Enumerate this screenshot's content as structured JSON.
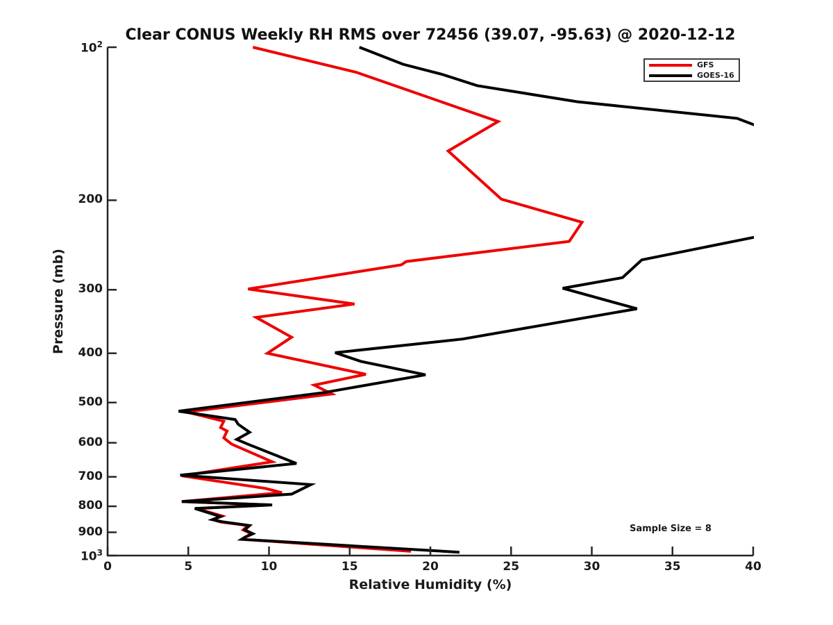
{
  "title": "Clear CONUS Weekly RH RMS over 72456 (39.07, -95.63) @ 2020-12-12",
  "annotation": "Sample Size = 8",
  "axis_color": "#262626",
  "chart_data": {
    "type": "line",
    "title": "Clear CONUS Weekly RH RMS over 72456 (39.07, -95.63) @ 2020-12-12",
    "xlabel": "Relative Humidity (%)",
    "ylabel": "Pressure (mb)",
    "xlim": [
      0,
      40
    ],
    "ylim": [
      100,
      1000
    ],
    "y_scale": "log",
    "y_inverted": true,
    "grid": false,
    "legend_position": "upper right",
    "xticks": [
      0,
      5,
      10,
      15,
      20,
      25,
      30,
      35,
      40
    ],
    "yticks": [
      {
        "value": 100,
        "label": "10",
        "sup": "2"
      },
      {
        "value": 200,
        "label": "200"
      },
      {
        "value": 300,
        "label": "300"
      },
      {
        "value": 400,
        "label": "400"
      },
      {
        "value": 500,
        "label": "500"
      },
      {
        "value": 600,
        "label": "600"
      },
      {
        "value": 700,
        "label": "700"
      },
      {
        "value": 800,
        "label": "800"
      },
      {
        "value": 900,
        "label": "900"
      },
      {
        "value": 1000,
        "label": "10",
        "sup": "3"
      }
    ],
    "series": [
      {
        "name": "GFS",
        "color": "#ee0000",
        "points_rh_pressure": [
          [
            9.0,
            100
          ],
          [
            15.4,
            112
          ],
          [
            24.2,
            140
          ],
          [
            21.1,
            160
          ],
          [
            24.4,
            199
          ],
          [
            29.4,
            221
          ],
          [
            28.6,
            241
          ],
          [
            18.5,
            264
          ],
          [
            18.2,
            268
          ],
          [
            8.7,
            299
          ],
          [
            15.3,
            320
          ],
          [
            9.2,
            340
          ],
          [
            11.4,
            372
          ],
          [
            9.9,
            400
          ],
          [
            16.0,
            440
          ],
          [
            12.8,
            462
          ],
          [
            13.9,
            481
          ],
          [
            4.9,
            522
          ],
          [
            7.2,
            544
          ],
          [
            7.0,
            560
          ],
          [
            7.4,
            569
          ],
          [
            7.2,
            587
          ],
          [
            7.7,
            604
          ],
          [
            10.2,
            654
          ],
          [
            4.6,
            697
          ],
          [
            9.8,
            738
          ],
          [
            10.8,
            752
          ],
          [
            4.6,
            783
          ],
          [
            10.0,
            795
          ],
          [
            5.5,
            808
          ],
          [
            7.1,
            836
          ],
          [
            6.5,
            850
          ],
          [
            7.0,
            859
          ],
          [
            8.7,
            873
          ],
          [
            8.4,
            890
          ],
          [
            8.9,
            906
          ],
          [
            8.5,
            921
          ],
          [
            8.4,
            929
          ],
          [
            18.8,
            981
          ]
        ]
      },
      {
        "name": "GOES-16",
        "color": "#000000",
        "points_rh_pressure": [
          [
            15.6,
            100
          ],
          [
            18.3,
            108
          ],
          [
            20.7,
            113
          ],
          [
            22.9,
            119
          ],
          [
            29.1,
            128
          ],
          [
            39.0,
            138
          ],
          [
            41.5,
            148
          ],
          [
            42.5,
            190
          ],
          [
            40.5,
            235
          ],
          [
            33.1,
            262
          ],
          [
            31.9,
            284
          ],
          [
            28.2,
            298
          ],
          [
            32.8,
            327
          ],
          [
            22.0,
            375
          ],
          [
            14.1,
            399
          ],
          [
            15.7,
            415
          ],
          [
            19.7,
            441
          ],
          [
            13.4,
            478
          ],
          [
            4.4,
            520
          ],
          [
            7.9,
            540
          ],
          [
            8.1,
            552
          ],
          [
            8.8,
            572
          ],
          [
            8.0,
            591
          ],
          [
            8.7,
            604
          ],
          [
            11.7,
            659
          ],
          [
            4.5,
            695
          ],
          [
            12.6,
            725
          ],
          [
            11.4,
            757
          ],
          [
            4.6,
            783
          ],
          [
            10.2,
            795
          ],
          [
            5.4,
            808
          ],
          [
            7.0,
            838
          ],
          [
            6.5,
            850
          ],
          [
            7.1,
            858
          ],
          [
            8.8,
            873
          ],
          [
            8.5,
            890
          ],
          [
            9.0,
            906
          ],
          [
            8.5,
            921
          ],
          [
            8.3,
            929
          ],
          [
            21.8,
            985
          ]
        ]
      }
    ]
  }
}
